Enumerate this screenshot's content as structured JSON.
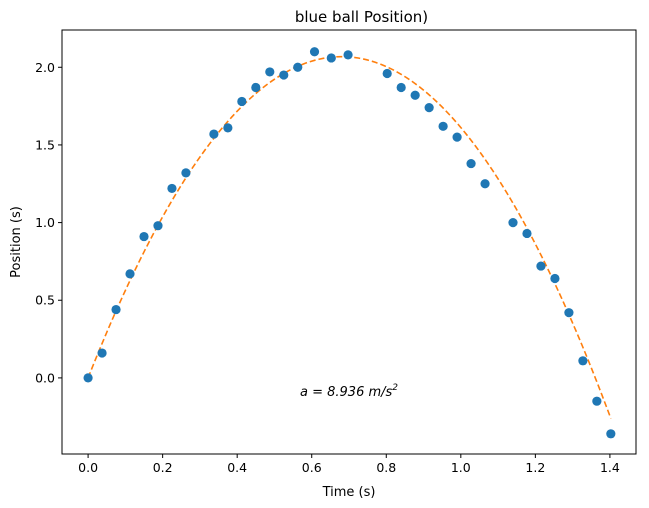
{
  "chart_data": {
    "type": "scatter",
    "title": "blue ball Position)",
    "xlabel": "Time (s)",
    "ylabel": "Position (s)",
    "xlim": [
      -0.07,
      1.47
    ],
    "ylim": [
      -0.49,
      2.24
    ],
    "xticks": [
      0.0,
      0.2,
      0.4,
      0.6,
      0.8,
      1.0,
      1.2,
      1.4
    ],
    "xtick_labels": [
      "0.0",
      "0.2",
      "0.4",
      "0.6",
      "0.8",
      "1.0",
      "1.2",
      "1.4"
    ],
    "yticks": [
      0.0,
      0.5,
      1.0,
      1.5,
      2.0
    ],
    "ytick_labels": [
      "0.0",
      "0.5",
      "1.0",
      "1.5",
      "2.0"
    ],
    "grid": false,
    "series": [
      {
        "type": "scatter",
        "color": "#1f77b4",
        "x": [
          0.0,
          0.0375,
          0.075,
          0.1125,
          0.15,
          0.1875,
          0.225,
          0.2625,
          0.3375,
          0.375,
          0.4125,
          0.45,
          0.4875,
          0.525,
          0.5625,
          0.6075,
          0.6525,
          0.6975,
          0.8025,
          0.84,
          0.8775,
          0.915,
          0.9525,
          0.99,
          1.0275,
          1.065,
          1.14,
          1.1775,
          1.215,
          1.2525,
          1.29,
          1.3275,
          1.365,
          1.4025
        ],
        "y": [
          0.0,
          0.16,
          0.44,
          0.67,
          0.91,
          0.98,
          1.22,
          1.32,
          1.57,
          1.61,
          1.78,
          1.87,
          1.97,
          1.95,
          2.0,
          2.1,
          2.06,
          2.08,
          1.96,
          1.87,
          1.82,
          1.74,
          1.62,
          1.55,
          1.38,
          1.25,
          1.0,
          0.93,
          0.72,
          0.64,
          0.42,
          0.11,
          -0.15,
          -0.36
        ]
      },
      {
        "type": "line",
        "style": "dashed",
        "color": "#ff7f0e",
        "fit": {
          "a": 8.936,
          "v0": 6.08,
          "y0": 0.0
        },
        "x_range": [
          0.0,
          1.4025
        ]
      }
    ],
    "annotation": {
      "text": "a = 8.936 m/s",
      "superscript": "2",
      "x": 0.56,
      "y": -0.1
    }
  }
}
